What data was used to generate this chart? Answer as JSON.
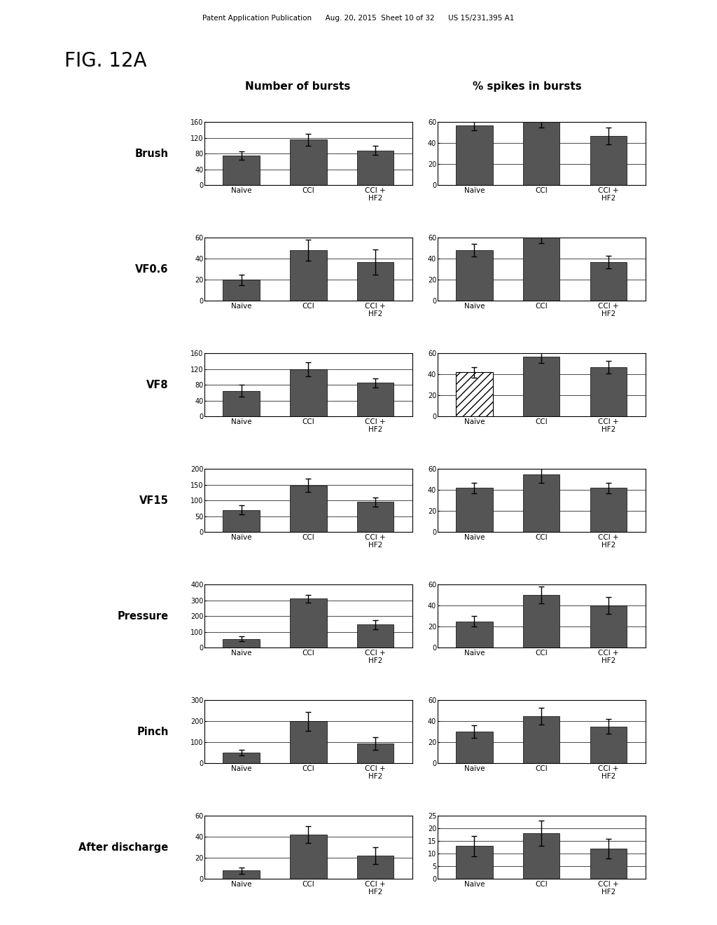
{
  "fig_label": "FIG. 12A",
  "header_left": "Number of bursts",
  "header_right": "% spikes in bursts",
  "row_labels": [
    "Brush",
    "VF0.6",
    "VF8",
    "VF15",
    "Pressure",
    "Pinch",
    "After discharge"
  ],
  "xlabels": [
    "Naïve",
    "CCI",
    "CCI +\nHF2"
  ],
  "left_bars": [
    {
      "values": [
        75,
        115,
        88
      ],
      "errors": [
        10,
        15,
        12
      ],
      "ylim": [
        0,
        160
      ],
      "yticks": [
        0,
        40,
        80,
        120,
        160
      ],
      "hatched": [
        false,
        false,
        false
      ]
    },
    {
      "values": [
        20,
        48,
        37
      ],
      "errors": [
        5,
        10,
        12
      ],
      "ylim": [
        0,
        60
      ],
      "yticks": [
        0,
        20,
        40,
        60
      ],
      "hatched": [
        false,
        false,
        false
      ]
    },
    {
      "values": [
        65,
        120,
        85
      ],
      "errors": [
        15,
        18,
        12
      ],
      "ylim": [
        0,
        160
      ],
      "yticks": [
        0,
        40,
        80,
        120,
        160
      ],
      "hatched": [
        false,
        false,
        false
      ]
    },
    {
      "values": [
        70,
        148,
        95
      ],
      "errors": [
        15,
        22,
        15
      ],
      "ylim": [
        0,
        200
      ],
      "yticks": [
        0,
        50,
        100,
        150,
        200
      ],
      "hatched": [
        false,
        false,
        false
      ]
    },
    {
      "values": [
        55,
        310,
        145
      ],
      "errors": [
        15,
        25,
        30
      ],
      "ylim": [
        0,
        400
      ],
      "yticks": [
        0,
        100,
        200,
        300,
        400
      ],
      "hatched": [
        false,
        false,
        false
      ]
    },
    {
      "values": [
        50,
        200,
        95
      ],
      "errors": [
        12,
        45,
        30
      ],
      "ylim": [
        0,
        300
      ],
      "yticks": [
        0,
        100,
        200,
        300
      ],
      "hatched": [
        false,
        false,
        false
      ]
    },
    {
      "values": [
        8,
        42,
        22
      ],
      "errors": [
        3,
        8,
        8
      ],
      "ylim": [
        0,
        60
      ],
      "yticks": [
        0,
        20,
        40,
        60
      ],
      "hatched": [
        false,
        false,
        false
      ]
    }
  ],
  "right_bars": [
    {
      "values": [
        57,
        60,
        47
      ],
      "errors": [
        5,
        5,
        8
      ],
      "ylim": [
        0,
        60
      ],
      "yticks": [
        0,
        20,
        40,
        60
      ],
      "hatched": [
        false,
        false,
        false
      ]
    },
    {
      "values": [
        48,
        60,
        37
      ],
      "errors": [
        6,
        5,
        6
      ],
      "ylim": [
        0,
        60
      ],
      "yticks": [
        0,
        20,
        40,
        60
      ],
      "hatched": [
        false,
        false,
        false
      ]
    },
    {
      "values": [
        42,
        57,
        47
      ],
      "errors": [
        5,
        6,
        6
      ],
      "ylim": [
        0,
        60
      ],
      "yticks": [
        0,
        20,
        40,
        60
      ],
      "hatched": [
        true,
        false,
        false
      ]
    },
    {
      "values": [
        42,
        55,
        42
      ],
      "errors": [
        5,
        8,
        5
      ],
      "ylim": [
        0,
        60
      ],
      "yticks": [
        0,
        20,
        40,
        60
      ],
      "hatched": [
        false,
        false,
        false
      ]
    },
    {
      "values": [
        25,
        50,
        40
      ],
      "errors": [
        5,
        8,
        8
      ],
      "ylim": [
        0,
        60
      ],
      "yticks": [
        0,
        20,
        40,
        60
      ],
      "hatched": [
        false,
        false,
        false
      ]
    },
    {
      "values": [
        30,
        45,
        35
      ],
      "errors": [
        6,
        8,
        7
      ],
      "ylim": [
        0,
        60
      ],
      "yticks": [
        0,
        20,
        40,
        60
      ],
      "hatched": [
        false,
        false,
        false
      ]
    },
    {
      "values": [
        13,
        18,
        12
      ],
      "errors": [
        4,
        5,
        4
      ],
      "ylim": [
        0,
        25
      ],
      "yticks": [
        0,
        5,
        10,
        15,
        20,
        25
      ],
      "hatched": [
        false,
        false,
        false
      ]
    }
  ],
  "bar_color": "#555555",
  "background_color": "#ffffff",
  "patent_text": "Patent Application Publication      Aug. 20, 2015  Sheet 10 of 32      US 15/231,395 A1"
}
